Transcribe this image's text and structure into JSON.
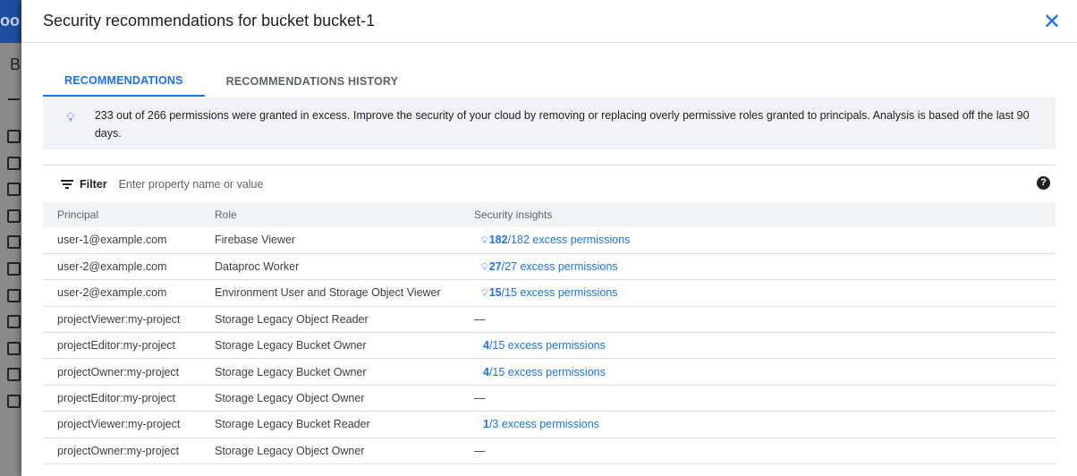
{
  "background": {
    "header_text": "oo",
    "letter": "B"
  },
  "panel": {
    "title": "Security recommendations for bucket bucket-1"
  },
  "tabs": [
    {
      "label": "RECOMMENDATIONS",
      "active": true
    },
    {
      "label": "RECOMMENDATIONS HISTORY",
      "active": false
    }
  ],
  "banner": {
    "icon": "lightbulb-icon",
    "text": "233 out of 266 permissions were granted in excess. Improve the security of your cloud by removing or replacing overly permissive roles granted to principals. Analysis is based off the last 90 days."
  },
  "filter": {
    "label": "Filter",
    "placeholder": "Enter property name or value"
  },
  "table": {
    "columns": [
      "Principal",
      "Role",
      "Security insights"
    ],
    "rows": [
      {
        "principal": "user-1@example.com",
        "role": "Firebase Viewer",
        "excess": "182",
        "total": "/182 excess permissions",
        "bulb": true
      },
      {
        "principal": "user-2@example.com",
        "role": "Dataproc Worker",
        "excess": "27",
        "total": "/27 excess permissions",
        "bulb": true
      },
      {
        "principal": "user-2@example.com",
        "role": "Environment User and Storage Object Viewer",
        "excess": "15",
        "total": "/15 excess permissions",
        "bulb": true
      },
      {
        "principal": "projectViewer:my-project",
        "role": "Storage Legacy Object Reader",
        "none": "—"
      },
      {
        "principal": "projectEditor:my-project",
        "role": "Storage Legacy Bucket Owner",
        "excess": "4",
        "total": "/15 excess permissions",
        "bulb": false
      },
      {
        "principal": "projectOwner:my-project",
        "role": "Storage Legacy Bucket Owner",
        "excess": "4",
        "total": "/15 excess permissions",
        "bulb": false
      },
      {
        "principal": "projectEditor:my-project",
        "role": "Storage Legacy Object Owner",
        "none": "—"
      },
      {
        "principal": "projectViewer:my-project",
        "role": "Storage Legacy Bucket Reader",
        "excess": "1",
        "total": "/3 excess permissions",
        "bulb": false
      },
      {
        "principal": "projectOwner:my-project",
        "role": "Storage Legacy Object Owner",
        "none": "—"
      }
    ]
  },
  "colors": {
    "accent": "#1a73e8",
    "banner_bg": "#f1f3f4"
  }
}
